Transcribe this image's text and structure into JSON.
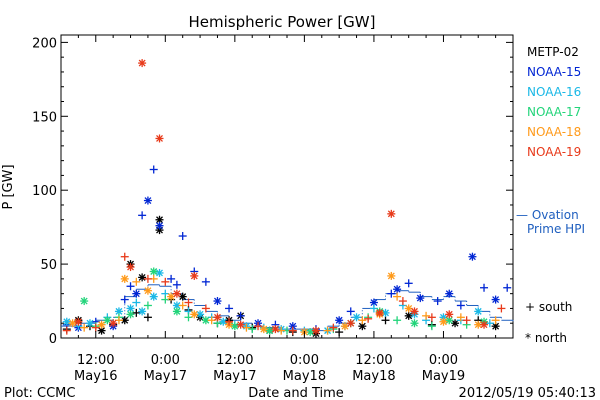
{
  "chart_data": {
    "type": "scatter",
    "title": "Hemispheric Power [GW]",
    "ylabel": "P [GW]",
    "xlabel": "Date and Time",
    "ylim": [
      0,
      205
    ],
    "xlim_hours": [
      -18,
      60
    ],
    "y_ticks": [
      "0",
      "50",
      "100",
      "150",
      "200"
    ],
    "x_ticks": [
      {
        "time": "12:00",
        "date": "May16"
      },
      {
        "time": "0:00",
        "date": "May17"
      },
      {
        "time": "12:00",
        "date": "May17"
      },
      {
        "time": "0:00",
        "date": "May18"
      },
      {
        "time": "12:00",
        "date": "May18"
      },
      {
        "time": "0:00",
        "date": "May19"
      }
    ],
    "legend": [
      {
        "name": "METP-02",
        "color": "#000000"
      },
      {
        "name": "NOAA-15",
        "color": "#0026d4"
      },
      {
        "name": "NOAA-16",
        "color": "#1ab8e6"
      },
      {
        "name": "NOAA-17",
        "color": "#22d47a"
      },
      {
        "name": "NOAA-18",
        "color": "#ff9a1a"
      },
      {
        "name": "NOAA-19",
        "color": "#e83a1a"
      }
    ],
    "ovation_label": [
      "— Ovation",
      "Prime HPI"
    ],
    "ovation_color": "#1f5fbf",
    "symbols": {
      "south": "+ south",
      "north": "* north"
    },
    "series": [
      {
        "name": "METP-02",
        "points": [
          [
            -17,
            6,
            "s"
          ],
          [
            -15,
            12,
            "n"
          ],
          [
            -13,
            8,
            "s"
          ],
          [
            -11,
            5,
            "n"
          ],
          [
            -9,
            9,
            "s"
          ],
          [
            -7,
            12,
            "n"
          ],
          [
            -5,
            17,
            "s"
          ],
          [
            -3,
            14,
            "s"
          ],
          [
            -4,
            41,
            "n"
          ],
          [
            -1,
            73,
            "n"
          ],
          [
            -1,
            80,
            "n"
          ],
          [
            -6,
            50,
            "n"
          ],
          [
            1,
            26,
            "s"
          ],
          [
            3,
            28,
            "n"
          ],
          [
            4,
            19,
            "s"
          ],
          [
            6,
            14,
            "n"
          ],
          [
            9,
            10,
            "s"
          ],
          [
            11,
            12,
            "n"
          ],
          [
            13,
            15,
            "n"
          ],
          [
            15,
            7,
            "s"
          ],
          [
            18,
            5,
            "n"
          ],
          [
            22,
            4,
            "s"
          ],
          [
            26,
            3,
            "n"
          ],
          [
            30,
            4,
            "s"
          ],
          [
            34,
            8,
            "n"
          ],
          [
            38,
            12,
            "s"
          ],
          [
            42,
            15,
            "n"
          ],
          [
            46,
            9,
            "s"
          ],
          [
            50,
            10,
            "n"
          ],
          [
            54,
            12,
            "s"
          ],
          [
            57,
            8,
            "n"
          ]
        ]
      },
      {
        "name": "NOAA-15",
        "points": [
          [
            -17,
            9,
            "s"
          ],
          [
            -15,
            7,
            "n"
          ],
          [
            -12,
            11,
            "s"
          ],
          [
            -9,
            8,
            "n"
          ],
          [
            -7,
            26,
            "s"
          ],
          [
            -6,
            35,
            "s"
          ],
          [
            -5,
            30,
            "n"
          ],
          [
            -4,
            83,
            "s"
          ],
          [
            -3,
            93,
            "n"
          ],
          [
            -2,
            114,
            "s"
          ],
          [
            -1,
            76,
            "n"
          ],
          [
            1,
            40,
            "s"
          ],
          [
            2,
            36,
            "s"
          ],
          [
            3,
            69,
            "s"
          ],
          [
            5,
            45,
            "s"
          ],
          [
            7,
            38,
            "s"
          ],
          [
            9,
            25,
            "n"
          ],
          [
            11,
            20,
            "s"
          ],
          [
            13,
            15,
            "s"
          ],
          [
            16,
            10,
            "n"
          ],
          [
            19,
            9,
            "s"
          ],
          [
            22,
            8,
            "n"
          ],
          [
            26,
            6,
            "s"
          ],
          [
            30,
            12,
            "n"
          ],
          [
            32,
            18,
            "s"
          ],
          [
            36,
            24,
            "n"
          ],
          [
            39,
            30,
            "s"
          ],
          [
            40,
            33,
            "n"
          ],
          [
            42,
            37,
            "s"
          ],
          [
            44,
            27,
            "n"
          ],
          [
            47,
            25,
            "s"
          ],
          [
            49,
            30,
            "n"
          ],
          [
            51,
            22,
            "s"
          ],
          [
            53,
            55,
            "n"
          ],
          [
            55,
            34,
            "s"
          ],
          [
            57,
            26,
            "n"
          ],
          [
            59,
            34,
            "s"
          ]
        ]
      },
      {
        "name": "NOAA-16",
        "points": [
          [
            -17,
            11,
            "n"
          ],
          [
            -15,
            8,
            "s"
          ],
          [
            -13,
            10,
            "n"
          ],
          [
            -10,
            14,
            "s"
          ],
          [
            -8,
            18,
            "n"
          ],
          [
            -6,
            20,
            "n"
          ],
          [
            -5,
            24,
            "s"
          ],
          [
            -4,
            18,
            "n"
          ],
          [
            -2,
            28,
            "n"
          ],
          [
            -1,
            44,
            "n"
          ],
          [
            0,
            30,
            "s"
          ],
          [
            2,
            22,
            "n"
          ],
          [
            4,
            18,
            "s"
          ],
          [
            6,
            16,
            "n"
          ],
          [
            8,
            14,
            "s"
          ],
          [
            10,
            11,
            "n"
          ],
          [
            12,
            9,
            "s"
          ],
          [
            14,
            8,
            "n"
          ],
          [
            17,
            7,
            "s"
          ],
          [
            20,
            6,
            "n"
          ],
          [
            24,
            5,
            "s"
          ],
          [
            28,
            5,
            "n"
          ],
          [
            31,
            8,
            "s"
          ],
          [
            33,
            14,
            "n"
          ],
          [
            36,
            20,
            "s"
          ],
          [
            38,
            17,
            "n"
          ],
          [
            41,
            22,
            "s"
          ],
          [
            43,
            16,
            "n"
          ],
          [
            45,
            12,
            "s"
          ],
          [
            48,
            14,
            "n"
          ],
          [
            51,
            12,
            "s"
          ],
          [
            54,
            18,
            "n"
          ],
          [
            56,
            10,
            "s"
          ]
        ]
      },
      {
        "name": "NOAA-17",
        "points": [
          [
            -14,
            25,
            "n"
          ],
          [
            -12,
            8,
            "s"
          ],
          [
            -10,
            12,
            "n"
          ],
          [
            -8,
            14,
            "s"
          ],
          [
            -6,
            16,
            "n"
          ],
          [
            -3,
            22,
            "s"
          ],
          [
            -2,
            45,
            "n"
          ],
          [
            0,
            26,
            "s"
          ],
          [
            2,
            18,
            "n"
          ],
          [
            4,
            14,
            "s"
          ],
          [
            7,
            12,
            "n"
          ],
          [
            9,
            10,
            "s"
          ],
          [
            12,
            8,
            "n"
          ],
          [
            15,
            6,
            "s"
          ],
          [
            18,
            5,
            "n"
          ],
          [
            21,
            5,
            "s"
          ],
          [
            25,
            4,
            "n"
          ],
          [
            29,
            6,
            "s"
          ],
          [
            32,
            10,
            "n"
          ],
          [
            35,
            14,
            "s"
          ],
          [
            37,
            18,
            "n"
          ],
          [
            40,
            12,
            "s"
          ],
          [
            43,
            10,
            "n"
          ],
          [
            46,
            8,
            "s"
          ],
          [
            49,
            12,
            "n"
          ],
          [
            52,
            9,
            "s"
          ],
          [
            55,
            11,
            "n"
          ]
        ]
      },
      {
        "name": "NOAA-18",
        "points": [
          [
            -16,
            10,
            "n"
          ],
          [
            -14,
            7,
            "s"
          ],
          [
            -11,
            9,
            "n"
          ],
          [
            -8,
            12,
            "s"
          ],
          [
            -7,
            40,
            "n"
          ],
          [
            -5,
            38,
            "s"
          ],
          [
            -3,
            32,
            "n"
          ],
          [
            -2,
            40,
            "s"
          ],
          [
            1,
            28,
            "n"
          ],
          [
            3,
            22,
            "s"
          ],
          [
            5,
            16,
            "n"
          ],
          [
            8,
            12,
            "s"
          ],
          [
            11,
            9,
            "n"
          ],
          [
            14,
            7,
            "s"
          ],
          [
            17,
            6,
            "n"
          ],
          [
            20,
            5,
            "s"
          ],
          [
            24,
            4,
            "n"
          ],
          [
            28,
            5,
            "s"
          ],
          [
            31,
            8,
            "n"
          ],
          [
            34,
            12,
            "s"
          ],
          [
            37,
            16,
            "n"
          ],
          [
            39,
            42,
            "n"
          ],
          [
            40,
            28,
            "s"
          ],
          [
            42,
            20,
            "n"
          ],
          [
            45,
            15,
            "s"
          ],
          [
            48,
            11,
            "n"
          ],
          [
            51,
            14,
            "s"
          ],
          [
            54,
            9,
            "n"
          ],
          [
            57,
            12,
            "s"
          ]
        ]
      },
      {
        "name": "NOAA-19",
        "points": [
          [
            -17,
            5,
            "s"
          ],
          [
            -15,
            11,
            "n"
          ],
          [
            -12,
            7,
            "s"
          ],
          [
            -9,
            10,
            "n"
          ],
          [
            -7,
            55,
            "s"
          ],
          [
            -6,
            48,
            "n"
          ],
          [
            -4,
            186,
            "n"
          ],
          [
            -3,
            40,
            "s"
          ],
          [
            -1,
            135,
            "n"
          ],
          [
            0,
            38,
            "s"
          ],
          [
            2,
            30,
            "n"
          ],
          [
            4,
            24,
            "s"
          ],
          [
            5,
            42,
            "n"
          ],
          [
            7,
            20,
            "s"
          ],
          [
            9,
            14,
            "n"
          ],
          [
            11,
            11,
            "s"
          ],
          [
            13,
            9,
            "n"
          ],
          [
            16,
            8,
            "s"
          ],
          [
            19,
            6,
            "n"
          ],
          [
            22,
            5,
            "s"
          ],
          [
            26,
            5,
            "n"
          ],
          [
            29,
            7,
            "s"
          ],
          [
            32,
            10,
            "n"
          ],
          [
            35,
            13,
            "s"
          ],
          [
            37,
            17,
            "n"
          ],
          [
            39,
            84,
            "n"
          ],
          [
            41,
            25,
            "s"
          ],
          [
            43,
            18,
            "n"
          ],
          [
            46,
            14,
            "s"
          ],
          [
            49,
            16,
            "n"
          ],
          [
            52,
            12,
            "s"
          ],
          [
            55,
            9,
            "n"
          ],
          [
            58,
            20,
            "s"
          ]
        ]
      }
    ],
    "ovation_steps": [
      [
        -18,
        8
      ],
      [
        -15,
        10
      ],
      [
        -12,
        12
      ],
      [
        -9,
        14
      ],
      [
        -7,
        28
      ],
      [
        -5,
        33
      ],
      [
        -3,
        36
      ],
      [
        -1,
        35
      ],
      [
        1,
        30
      ],
      [
        3,
        26
      ],
      [
        5,
        22
      ],
      [
        7,
        18
      ],
      [
        9,
        15
      ],
      [
        11,
        12
      ],
      [
        13,
        10
      ],
      [
        15,
        8
      ],
      [
        17,
        7
      ],
      [
        20,
        6
      ],
      [
        23,
        6
      ],
      [
        26,
        5
      ],
      [
        28,
        8
      ],
      [
        30,
        10
      ],
      [
        32,
        14
      ],
      [
        34,
        20
      ],
      [
        36,
        26
      ],
      [
        38,
        30
      ],
      [
        40,
        32
      ],
      [
        42,
        31
      ],
      [
        44,
        28
      ],
      [
        46,
        26
      ],
      [
        48,
        28
      ],
      [
        50,
        25
      ],
      [
        52,
        22
      ],
      [
        54,
        18
      ],
      [
        56,
        14
      ],
      [
        58,
        12
      ],
      [
        60,
        10
      ]
    ]
  },
  "footer": {
    "plot_credit": "Plot: CCMC",
    "timestamp": "2012/05/19 05:40:13"
  }
}
